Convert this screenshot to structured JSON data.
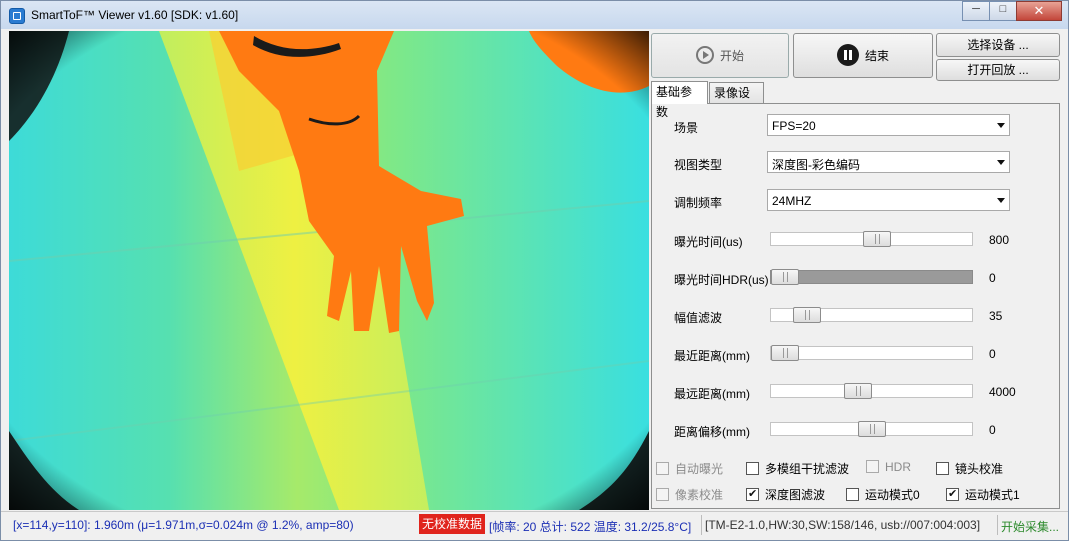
{
  "window": {
    "title": "SmartToF™ Viewer v1.60 [SDK: v1.60]",
    "controls": {
      "minimize": "─",
      "maximize": "□",
      "close": "✕"
    }
  },
  "toolbar": {
    "start_label": "开始",
    "stop_label": "结束",
    "select_device_label": "选择设备 ...",
    "open_playback_label": "打开回放 ..."
  },
  "tabs": [
    {
      "label": "基础参数",
      "active": true
    },
    {
      "label": "录像设置",
      "active": false
    }
  ],
  "params": {
    "scene": {
      "label": "场景",
      "value": "FPS=20"
    },
    "view_type": {
      "label": "视图类型",
      "value": "深度图-彩色编码"
    },
    "mod_freq": {
      "label": "调制频率",
      "value": "24MHZ"
    }
  },
  "sliders": [
    {
      "label": "曝光时间(us)",
      "value": "800",
      "fraction": 0.53
    },
    {
      "label": "曝光时间HDR(us)",
      "value": "0",
      "fraction": 0.0,
      "disabled": true
    },
    {
      "label": "幅值滤波",
      "value": "35",
      "fraction": 0.13
    },
    {
      "label": "最近距离(mm)",
      "value": "0",
      "fraction": 0.0
    },
    {
      "label": "最远距离(mm)",
      "value": "4000",
      "fraction": 0.42
    },
    {
      "label": "距离偏移(mm)",
      "value": "0",
      "fraction": 0.5
    }
  ],
  "checkboxes": {
    "auto_exposure": {
      "label": "自动曝光",
      "checked": false,
      "disabled": true
    },
    "multi_interference": {
      "label": "多模组干扰滤波",
      "checked": false,
      "disabled": false
    },
    "hdr": {
      "label": "HDR",
      "checked": false,
      "disabled": true
    },
    "lens_calib": {
      "label": "镜头校准",
      "checked": false,
      "disabled": false
    },
    "pixel_calib": {
      "label": "像素校准",
      "checked": false,
      "disabled": true
    },
    "depth_filter": {
      "label": "深度图滤波",
      "checked": true,
      "disabled": false
    },
    "motion0": {
      "label": "运动模式0",
      "checked": false,
      "disabled": false
    },
    "motion1": {
      "label": "运动模式1",
      "checked": true,
      "disabled": false
    }
  },
  "status": {
    "position": "[x=114,y=110]: 1.960m (μ=1.971m,σ=0.024m @ 1.2%, amp=80)",
    "calib_warning": "无校准数据",
    "frame_info": "[帧率: 20 总计: 522 温度: 31.2/25.8°C]",
    "device_info": "[TM-E2-1.0,HW:30,SW:158/146, usb://007:004:003]",
    "state": "开始采集..."
  },
  "colors": {
    "depth_background": "#39e6cc",
    "hand": "#ff7a12",
    "warning_bg": "#e0241c",
    "status_text": "#1b2fb4",
    "state_text": "#2c8a2c"
  }
}
